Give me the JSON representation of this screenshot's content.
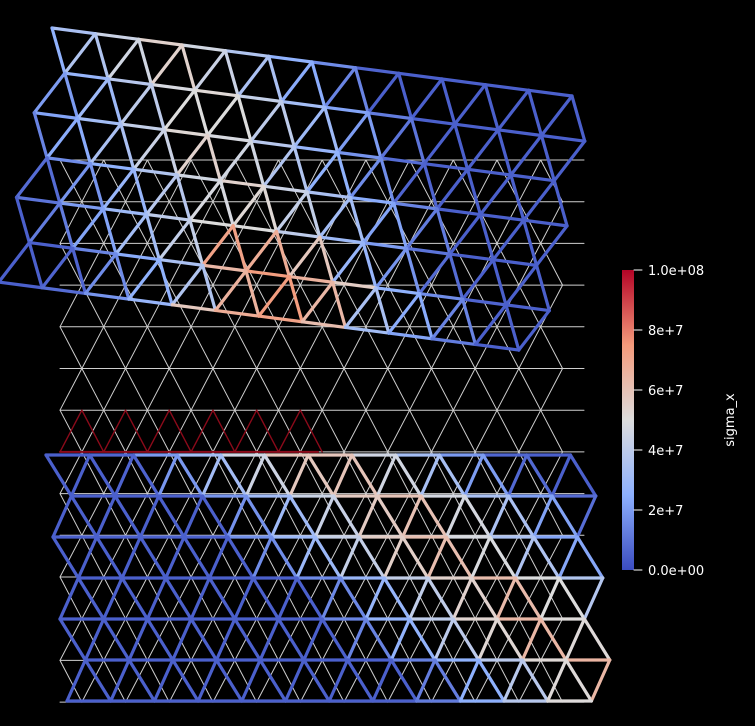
{
  "colorbar": {
    "title": "sigma_x",
    "ticks": [
      "1.0e+08",
      "8e+7",
      "6e+7",
      "4e+7",
      "2e+7",
      "0.0e+00"
    ],
    "range": [
      0,
      100000000
    ],
    "colormap": [
      "#3b4cc0",
      "#8db0fe",
      "#dddddd",
      "#f49a7b",
      "#b40426"
    ]
  },
  "colors": {
    "background": "#000000",
    "reference_mesh": "#cfcfcf",
    "failed_band": "#8b0a1a"
  }
}
